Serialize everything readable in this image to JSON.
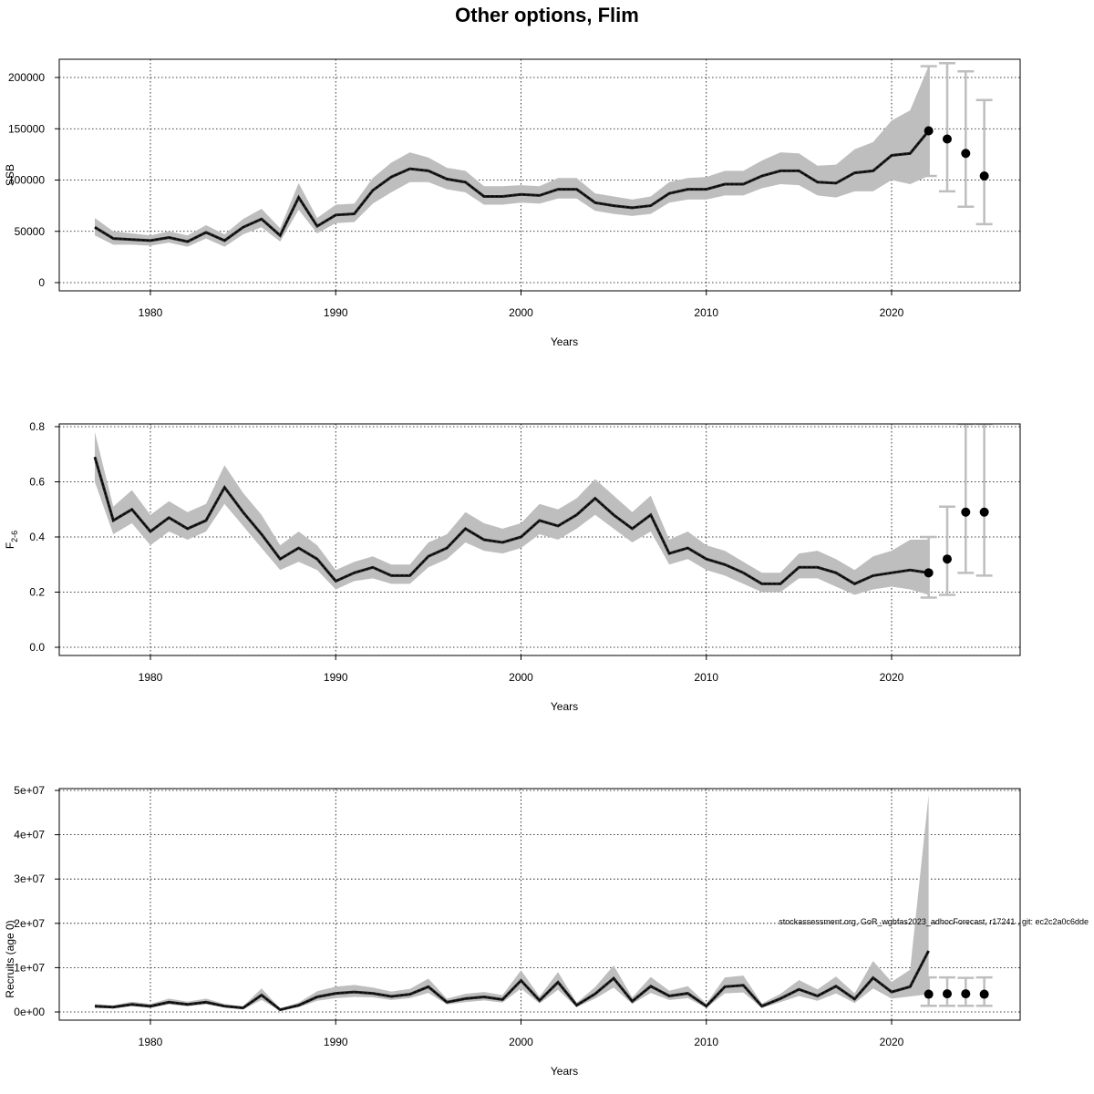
{
  "figure": {
    "title": "Other options, Flim",
    "footnote": "stockassessment.org, GoR_wgbfas2023_adhocForecast, r17241 , git: ec2c2a0c6dde"
  },
  "colors": {
    "band": "#bebebe",
    "line": "#000000",
    "errorbar": "#bebebe",
    "grid": "#000000"
  },
  "chart_data": [
    {
      "type": "line",
      "xlabel": "Years",
      "ylabel": "SSB",
      "xlim": [
        1975,
        2026
      ],
      "ylim": [
        0,
        210000
      ],
      "xticks": [
        1980,
        1990,
        2000,
        2010,
        2020
      ],
      "yticks": [
        0,
        50000,
        100000,
        150000,
        200000
      ],
      "ytick_labels": [
        "0",
        "50000",
        "100000",
        "150000",
        "200000"
      ],
      "grid": true,
      "x": [
        1977,
        1978,
        1979,
        1980,
        1981,
        1982,
        1983,
        1984,
        1985,
        1986,
        1987,
        1988,
        1989,
        1990,
        1991,
        1992,
        1993,
        1994,
        1995,
        1996,
        1997,
        1998,
        1999,
        2000,
        2001,
        2002,
        2003,
        2004,
        2005,
        2006,
        2007,
        2008,
        2009,
        2010,
        2011,
        2012,
        2013,
        2014,
        2015,
        2016,
        2017,
        2018,
        2019,
        2020,
        2021,
        2022
      ],
      "estimate": [
        54000,
        43000,
        42000,
        41000,
        44000,
        40000,
        49000,
        41000,
        54000,
        62000,
        46000,
        83000,
        55000,
        66000,
        67000,
        90000,
        103000,
        111000,
        109000,
        101000,
        98000,
        84000,
        84000,
        86000,
        85000,
        91000,
        91000,
        78000,
        75000,
        73000,
        75000,
        87000,
        91000,
        91000,
        96000,
        96000,
        104000,
        109000,
        109000,
        98000,
        97000,
        107000,
        109000,
        124000,
        126000,
        148000
      ],
      "lower": [
        46000,
        37000,
        37000,
        36000,
        39000,
        35000,
        43000,
        35000,
        47000,
        54000,
        40000,
        71000,
        48000,
        58000,
        59000,
        77000,
        88000,
        98000,
        98000,
        91000,
        88000,
        76000,
        76000,
        78000,
        77000,
        82000,
        82000,
        70000,
        67000,
        65000,
        67000,
        78000,
        81000,
        81000,
        85000,
        85000,
        92000,
        96000,
        95000,
        85000,
        83000,
        89000,
        89000,
        100000,
        96000,
        104000
      ],
      "upper": [
        63000,
        50000,
        48000,
        46000,
        50000,
        46000,
        56000,
        47000,
        62000,
        72000,
        53000,
        97000,
        63000,
        76000,
        77000,
        102000,
        117000,
        127000,
        122000,
        112000,
        109000,
        94000,
        94000,
        95000,
        94000,
        102000,
        102000,
        87000,
        84000,
        81000,
        84000,
        98000,
        102000,
        103000,
        109000,
        109000,
        119000,
        127000,
        126000,
        114000,
        115000,
        130000,
        137000,
        158000,
        168000,
        211000
      ],
      "forecast": {
        "x": [
          2022,
          2023,
          2024,
          2025
        ],
        "median": [
          148000,
          140000,
          126000,
          104000
        ],
        "lower": [
          104000,
          89000,
          74000,
          57000
        ],
        "upper": [
          211000,
          214000,
          206000,
          178000
        ]
      }
    },
    {
      "type": "line",
      "xlabel": "Years",
      "ylabel": "F",
      "ylabel_subscript": "2-6",
      "xlim": [
        1975,
        2026
      ],
      "ylim": [
        0,
        0.8
      ],
      "xticks": [
        1980,
        1990,
        2000,
        2010,
        2020
      ],
      "yticks": [
        0,
        0.2,
        0.4,
        0.6,
        0.8
      ],
      "ytick_labels": [
        "0.0",
        "0.2",
        "0.4",
        "0.6",
        "0.8"
      ],
      "grid": true,
      "x": [
        1977,
        1978,
        1979,
        1980,
        1981,
        1982,
        1983,
        1984,
        1985,
        1986,
        1987,
        1988,
        1989,
        1990,
        1991,
        1992,
        1993,
        1994,
        1995,
        1996,
        1997,
        1998,
        1999,
        2000,
        2001,
        2002,
        2003,
        2004,
        2005,
        2006,
        2007,
        2008,
        2009,
        2010,
        2011,
        2012,
        2013,
        2014,
        2015,
        2016,
        2017,
        2018,
        2019,
        2020,
        2021,
        2022
      ],
      "estimate": [
        0.69,
        0.46,
        0.5,
        0.42,
        0.47,
        0.43,
        0.46,
        0.58,
        0.49,
        0.41,
        0.32,
        0.36,
        0.32,
        0.24,
        0.27,
        0.29,
        0.26,
        0.26,
        0.33,
        0.36,
        0.43,
        0.39,
        0.38,
        0.4,
        0.46,
        0.44,
        0.48,
        0.54,
        0.48,
        0.43,
        0.48,
        0.34,
        0.36,
        0.32,
        0.3,
        0.27,
        0.23,
        0.23,
        0.29,
        0.29,
        0.27,
        0.23,
        0.26,
        0.27,
        0.28,
        0.27
      ],
      "lower": [
        0.6,
        0.41,
        0.45,
        0.37,
        0.42,
        0.39,
        0.42,
        0.52,
        0.44,
        0.36,
        0.28,
        0.31,
        0.28,
        0.21,
        0.24,
        0.25,
        0.23,
        0.23,
        0.29,
        0.32,
        0.38,
        0.35,
        0.34,
        0.36,
        0.41,
        0.39,
        0.43,
        0.48,
        0.43,
        0.38,
        0.42,
        0.3,
        0.32,
        0.28,
        0.26,
        0.23,
        0.2,
        0.2,
        0.25,
        0.25,
        0.22,
        0.19,
        0.21,
        0.22,
        0.21,
        0.19
      ],
      "upper": [
        0.78,
        0.51,
        0.57,
        0.48,
        0.53,
        0.49,
        0.52,
        0.66,
        0.56,
        0.48,
        0.37,
        0.42,
        0.37,
        0.28,
        0.31,
        0.33,
        0.3,
        0.3,
        0.38,
        0.41,
        0.49,
        0.45,
        0.43,
        0.45,
        0.52,
        0.5,
        0.54,
        0.61,
        0.55,
        0.49,
        0.55,
        0.39,
        0.42,
        0.37,
        0.35,
        0.31,
        0.27,
        0.27,
        0.34,
        0.35,
        0.32,
        0.28,
        0.33,
        0.35,
        0.39,
        0.39
      ],
      "forecast": {
        "x": [
          2022,
          2023,
          2024,
          2025
        ],
        "median": [
          0.27,
          0.32,
          0.49,
          0.49
        ],
        "lower": [
          0.18,
          0.19,
          0.27,
          0.26
        ],
        "upper": [
          0.4,
          0.51,
          0.81,
          0.81
        ]
      }
    },
    {
      "type": "line",
      "xlabel": "Years",
      "ylabel": "Recruits (age 0)",
      "xlim": [
        1975,
        2026
      ],
      "ylim": [
        0,
        50000000
      ],
      "xticks": [
        1980,
        1990,
        2000,
        2010,
        2020
      ],
      "yticks": [
        0,
        10000000,
        20000000,
        30000000,
        40000000,
        50000000
      ],
      "ytick_labels": [
        "0e+00",
        "1e+07",
        "2e+07",
        "3e+07",
        "4e+07",
        "5e+07"
      ],
      "grid": true,
      "x": [
        1977,
        1978,
        1979,
        1980,
        1981,
        1982,
        1983,
        1984,
        1985,
        1986,
        1987,
        1988,
        1989,
        1990,
        1991,
        1992,
        1993,
        1994,
        1995,
        1996,
        1997,
        1998,
        1999,
        2000,
        2001,
        2002,
        2003,
        2004,
        2005,
        2006,
        2007,
        2008,
        2009,
        2010,
        2011,
        2012,
        2013,
        2014,
        2015,
        2016,
        2017,
        2018,
        2019,
        2020,
        2021,
        2022
      ],
      "estimate": [
        1300000,
        1100000,
        1700000,
        1300000,
        2200000,
        1700000,
        2200000,
        1300000,
        900000,
        3800000,
        500000,
        1500000,
        3400000,
        4200000,
        4500000,
        4200000,
        3500000,
        4000000,
        5700000,
        2200000,
        3000000,
        3400000,
        2800000,
        7100000,
        2600000,
        6700000,
        1500000,
        4100000,
        7600000,
        2400000,
        5800000,
        3600000,
        4200000,
        1300000,
        5700000,
        6000000,
        1300000,
        3000000,
        5100000,
        3600000,
        5800000,
        2900000,
        7700000,
        4500000,
        5700000,
        13800000
      ],
      "lower": [
        900000,
        800000,
        1300000,
        900000,
        1700000,
        1300000,
        1700000,
        1000000,
        600000,
        2700000,
        300000,
        1100000,
        2500000,
        3100000,
        3400000,
        3300000,
        2700000,
        3100000,
        4300000,
        1700000,
        2200000,
        2600000,
        2100000,
        5300000,
        1900000,
        5000000,
        1100000,
        3000000,
        5500000,
        1800000,
        4300000,
        2700000,
        3100000,
        900000,
        4200000,
        4400000,
        900000,
        2200000,
        3600000,
        2500000,
        4200000,
        2000000,
        5300000,
        3000000,
        3500000,
        4000000
      ],
      "upper": [
        1800000,
        1500000,
        2300000,
        1800000,
        3000000,
        2300000,
        3000000,
        1800000,
        1300000,
        5300000,
        800000,
        2100000,
        4700000,
        5700000,
        6100000,
        5500000,
        4600000,
        5200000,
        7500000,
        3000000,
        4100000,
        4500000,
        3800000,
        9400000,
        3500000,
        9000000,
        2100000,
        5600000,
        10500000,
        3300000,
        7900000,
        4800000,
        5800000,
        1900000,
        7800000,
        8200000,
        1900000,
        4100000,
        7200000,
        5100000,
        8000000,
        4200000,
        11500000,
        6800000,
        9500000,
        49000000
      ],
      "forecast": {
        "x": [
          2022,
          2023,
          2024,
          2025
        ],
        "median": [
          4000000,
          4100000,
          4100000,
          4000000
        ],
        "lower": [
          1400000,
          1400000,
          1400000,
          1400000
        ],
        "upper": [
          7800000,
          7800000,
          7700000,
          7800000
        ]
      }
    }
  ]
}
